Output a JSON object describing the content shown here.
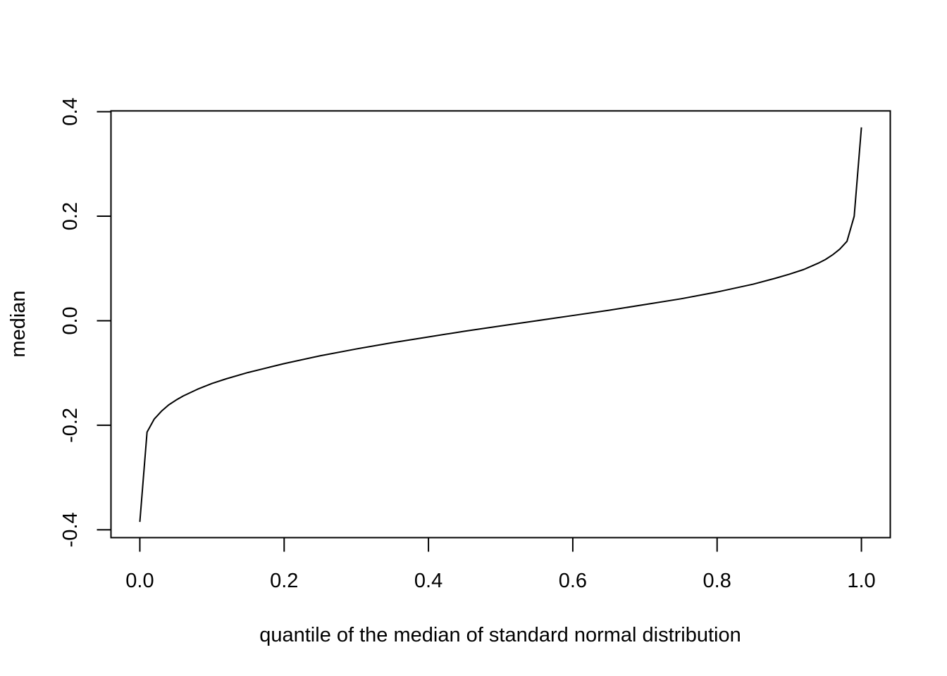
{
  "chart_data": {
    "type": "line",
    "title": "",
    "xlabel": "quantile of the median of standard normal distribution",
    "ylabel": "median",
    "xlim": [
      -0.04,
      1.04
    ],
    "ylim": [
      -0.415,
      0.4015
    ],
    "x_ticks": [
      0.0,
      0.2,
      0.4,
      0.6,
      0.8,
      1.0
    ],
    "x_tick_labels": [
      "0.0",
      "0.2",
      "0.4",
      "0.6",
      "0.8",
      "1.0"
    ],
    "y_ticks": [
      -0.4,
      -0.2,
      0.0,
      0.2,
      0.4
    ],
    "y_tick_labels": [
      "-0.4",
      "-0.2",
      "0.0",
      "0.2",
      "0.4"
    ],
    "grid": false,
    "legend": "none",
    "line_color": "#000000",
    "series": [
      {
        "x": [
          0.0,
          0.01,
          0.02,
          0.03,
          0.04,
          0.05,
          0.06,
          0.08,
          0.1,
          0.12,
          0.15,
          0.2,
          0.25,
          0.3,
          0.35,
          0.4,
          0.45,
          0.5,
          0.55,
          0.6,
          0.65,
          0.7,
          0.75,
          0.8,
          0.85,
          0.88,
          0.9,
          0.92,
          0.94,
          0.95,
          0.96,
          0.97,
          0.98,
          0.99,
          1.0
        ],
        "y": [
          -0.385,
          -0.213,
          -0.188,
          -0.173,
          -0.161,
          -0.152,
          -0.144,
          -0.131,
          -0.12,
          -0.111,
          -0.099,
          -0.082,
          -0.067,
          -0.054,
          -0.042,
          -0.031,
          -0.02,
          -0.01,
          0.0,
          0.01,
          0.02,
          0.031,
          0.042,
          0.055,
          0.07,
          0.081,
          0.089,
          0.098,
          0.11,
          0.117,
          0.126,
          0.137,
          0.152,
          0.2,
          0.37
        ]
      }
    ]
  }
}
